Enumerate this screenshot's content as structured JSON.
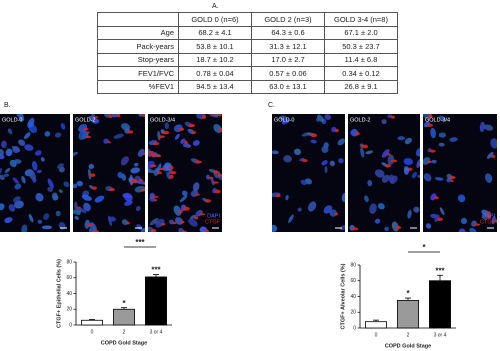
{
  "panel_a": {
    "label": "A.",
    "table": {
      "header": [
        "GOLD 0 (n=6)",
        "GOLD 2 (n=3)",
        "GOLD 3-4 (n=8)"
      ],
      "rows": [
        [
          "Age",
          "68.2 ± 4.1",
          "64.3 ± 0.6",
          "67.1 ± 2.0"
        ],
        [
          "Pack-years",
          "53.8 ± 10.1",
          "31.3 ± 12.1",
          "50.3 ± 23.7"
        ],
        [
          "Stop-years",
          "18.7 ± 10.2",
          "17.0 ± 2.7",
          "11.4 ± 6.8"
        ],
        [
          "FEV1/FVC",
          "0.78 ± 0.04",
          "0.57 ± 0.06",
          "0.34 ± 0.12"
        ],
        [
          "%FEV1",
          "94.5 ± 13.4",
          "63.0 ± 13.1",
          "26.8 ± 9.1"
        ]
      ]
    }
  },
  "panel_b": {
    "label": "B.",
    "images": [
      "GOLD-0",
      "GOLD-2",
      "GOLD-3/4"
    ],
    "stains": [
      "DAPI",
      "CTGF"
    ]
  },
  "panel_c": {
    "label": "C.",
    "images": [
      "GOLD-0",
      "GOLD-2",
      "GOLD-3/4"
    ],
    "stains": [
      "DAPI",
      "CTGF"
    ]
  },
  "chart_data": [
    {
      "type": "bar",
      "y_label": "CTGF+ Epithelial Cells (%)",
      "x_label": "COPD Gold Stage",
      "categories": [
        "0",
        "2",
        "3 or 4"
      ],
      "values": [
        6,
        20,
        61
      ],
      "errors": [
        1,
        2,
        3
      ],
      "colors": [
        "#ffffff",
        "#9a9a9a",
        "#000000"
      ],
      "bar_labels": [
        null,
        "*",
        "***"
      ],
      "bracket_label": "***",
      "ylim": [
        0,
        80
      ],
      "yticks": [
        0,
        20,
        40,
        60,
        80
      ]
    },
    {
      "type": "bar",
      "y_label": "CTGF+ Alveolar Cells (%)",
      "x_label": "COPD Gold Stage",
      "categories": [
        "0",
        "2",
        "3 or 4"
      ],
      "values": [
        8,
        35,
        60
      ],
      "errors": [
        2,
        3,
        7
      ],
      "colors": [
        "#ffffff",
        "#9a9a9a",
        "#000000"
      ],
      "bar_labels": [
        null,
        "*",
        "***"
      ],
      "bracket_label": "*",
      "ylim": [
        0,
        80
      ],
      "yticks": [
        0,
        20,
        40,
        60,
        80
      ]
    }
  ]
}
